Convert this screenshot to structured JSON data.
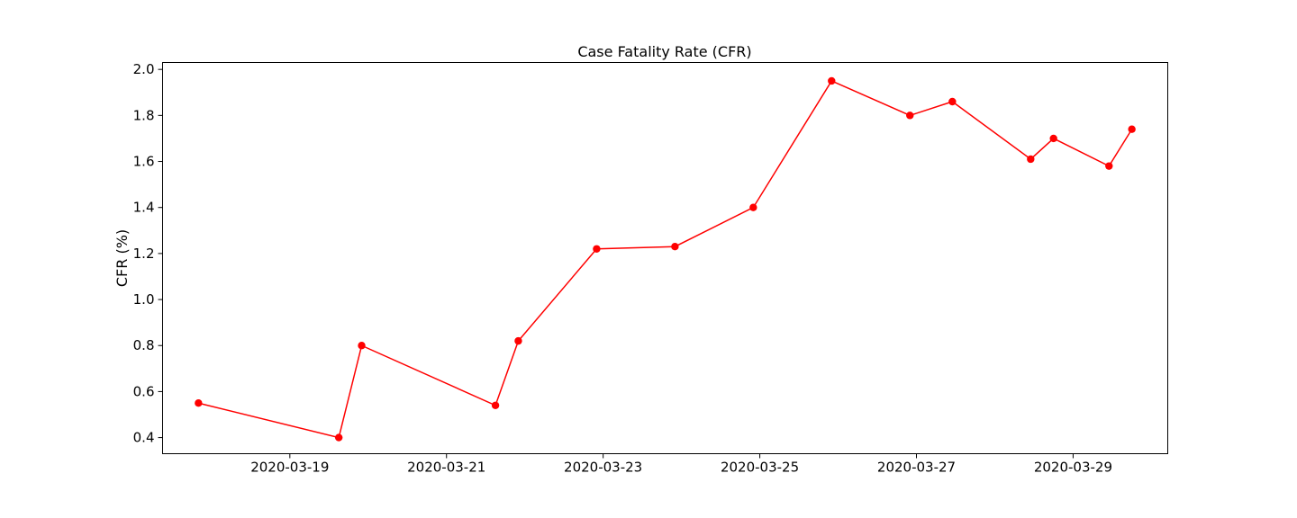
{
  "chart_data": {
    "type": "line",
    "title": "Case Fatality Rate (CFR)",
    "xlabel": "",
    "ylabel": "CFR (%)",
    "x_type": "datetime",
    "xlim": [
      "2020-03-17 09:00",
      "2020-03-30 05:00"
    ],
    "ylim": [
      0.33,
      2.03
    ],
    "x_ticks": [
      "2020-03-19",
      "2020-03-21",
      "2020-03-23",
      "2020-03-25",
      "2020-03-27",
      "2020-03-29"
    ],
    "y_ticks": [
      0.4,
      0.6,
      0.8,
      1.0,
      1.2,
      1.4,
      1.6,
      1.8,
      2.0
    ],
    "grid": false,
    "series": [
      {
        "color": "#ff0000",
        "marker": "circle",
        "x": [
          "2020-03-17 20:00",
          "2020-03-19 15:00",
          "2020-03-19 22:00",
          "2020-03-21 15:00",
          "2020-03-21 22:00",
          "2020-03-22 22:00",
          "2020-03-23 22:00",
          "2020-03-24 22:00",
          "2020-03-25 22:00",
          "2020-03-26 22:00",
          "2020-03-27 11:00",
          "2020-03-28 11:00",
          "2020-03-28 18:00",
          "2020-03-29 11:00",
          "2020-03-29 18:00"
        ],
        "values": [
          0.55,
          0.4,
          0.8,
          0.54,
          0.82,
          1.22,
          1.23,
          1.4,
          1.95,
          1.8,
          1.86,
          1.61,
          1.7,
          1.58,
          1.74
        ]
      }
    ]
  }
}
